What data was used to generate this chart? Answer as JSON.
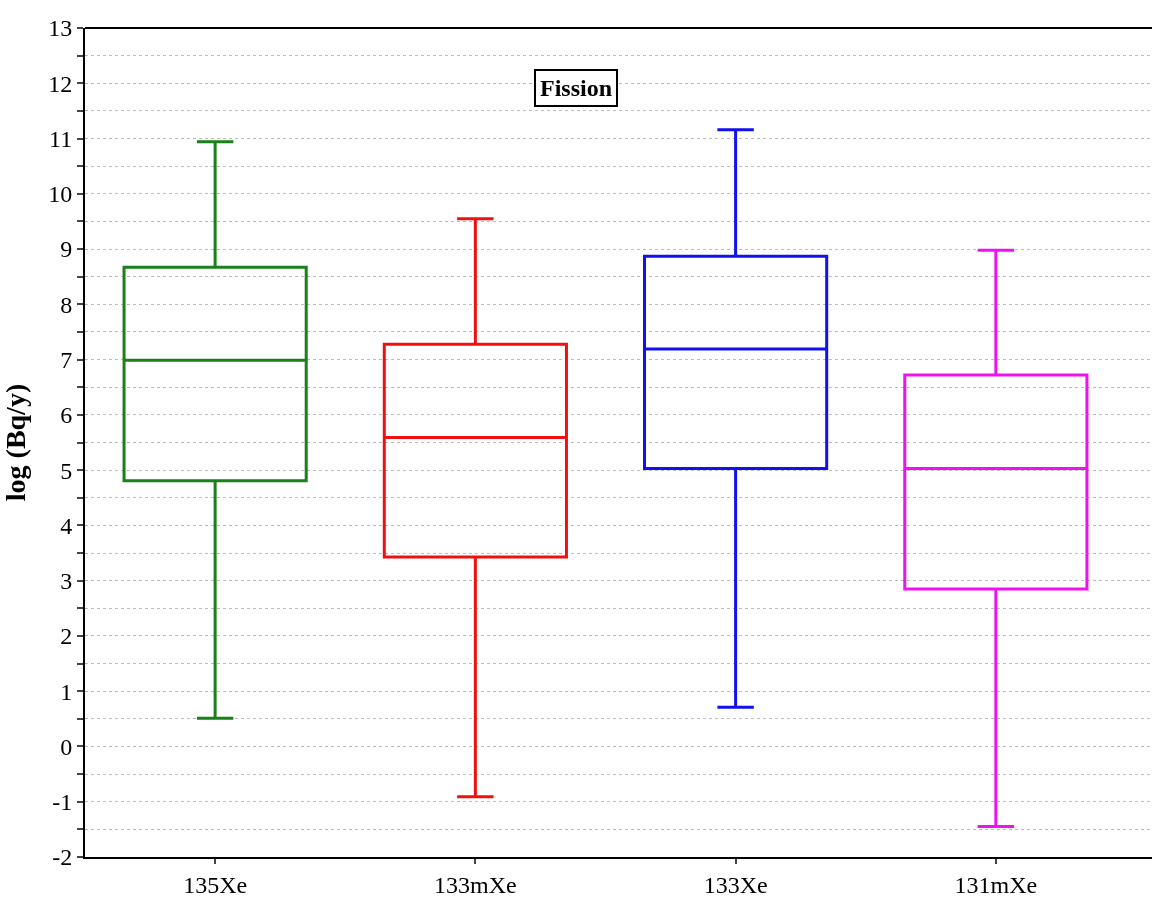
{
  "chart_data": {
    "type": "box",
    "ylabel": "log (Bq/y)",
    "annotations": [
      "Fission"
    ],
    "categories": [
      "135Xe",
      "133mXe",
      "133Xe",
      "131mXe"
    ],
    "colors": [
      "#1a801a",
      "#f01010",
      "#1010f0",
      "#f010f0"
    ],
    "boxes": [
      {
        "low": 0.51,
        "q1": 4.81,
        "median": 6.99,
        "q3": 8.67,
        "high": 10.94
      },
      {
        "low": -0.91,
        "q1": 3.43,
        "median": 5.59,
        "q3": 7.28,
        "high": 9.55
      },
      {
        "low": 0.71,
        "q1": 5.03,
        "median": 7.19,
        "q3": 8.87,
        "high": 11.16
      },
      {
        "low": -1.45,
        "q1": 2.85,
        "median": 5.03,
        "q3": 6.72,
        "high": 8.98
      }
    ],
    "ylim": [
      -2,
      13
    ],
    "yticks": [
      -2,
      {
        "value": -1.5,
        "label": null
      },
      -1,
      {
        "value": -0.5,
        "label": null
      },
      0,
      {
        "value": 0.5,
        "label": null
      },
      1,
      {
        "value": 1.5,
        "label": null
      },
      2,
      {
        "value": 2.5,
        "label": null
      },
      3,
      {
        "value": 3.5,
        "label": null
      },
      4,
      {
        "value": 4.5,
        "label": null
      },
      5,
      {
        "value": 5.5,
        "label": null
      },
      6,
      {
        "value": 6.5,
        "label": null
      },
      7,
      {
        "value": 7.5,
        "label": null
      },
      8,
      {
        "value": 8.5,
        "label": null
      },
      9,
      {
        "value": 9.5,
        "label": null
      },
      10,
      {
        "value": 10.5,
        "label": null
      },
      11,
      {
        "value": 11.5,
        "label": null
      },
      12,
      {
        "value": 12.5,
        "label": null
      },
      13
    ],
    "grid": "y",
    "legend": false
  }
}
